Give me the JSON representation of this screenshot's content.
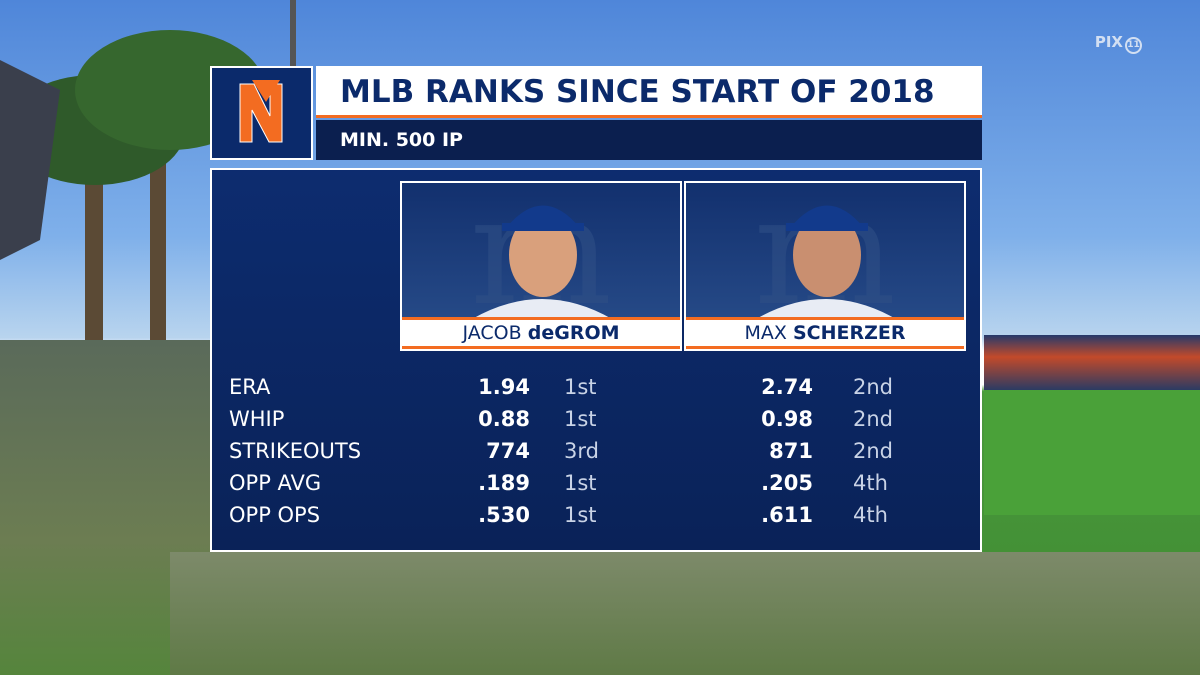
{
  "network": {
    "name": "PIX",
    "channel": "11"
  },
  "header": {
    "title": "MLB RANKS SINCE START OF 2018",
    "subtitle": "MIN. 500 IP"
  },
  "players": [
    {
      "first": "JACOB",
      "last": "deGROM"
    },
    {
      "first": "MAX",
      "last": "SCHERZER"
    }
  ],
  "stats": {
    "rows": [
      [
        "ERA",
        "1.94",
        "1st",
        "2.74",
        "2nd"
      ],
      [
        "WHIP",
        "0.88",
        "1st",
        "0.98",
        "2nd"
      ],
      [
        "STRIKEOUTS",
        "774",
        "3rd",
        "871",
        "2nd"
      ],
      [
        "OPP AVG",
        ".189",
        "1st",
        ".205",
        "4th"
      ],
      [
        "OPP OPS",
        ".530",
        "1st",
        ".611",
        "4th"
      ]
    ]
  }
}
